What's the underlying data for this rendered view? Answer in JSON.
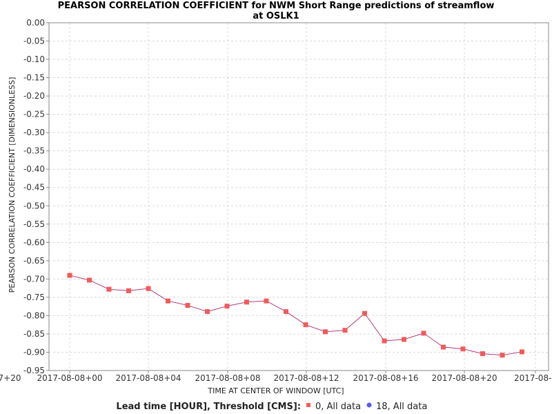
{
  "chart_data": {
    "type": "line",
    "title_line1": "PEARSON CORRELATION COEFFICIENT for NWM Short Range predictions of streamflow",
    "title_line2": "at OSLK1",
    "xlabel": "TIME AT CENTER OF WINDOW [UTC]",
    "ylabel": "PEARSON CORRELATION COEFFICIENT [DIMENSIONLESS]",
    "ylim": [
      -0.95,
      0.0
    ],
    "y_ticks": [
      "0.00",
      "-0.05",
      "-0.10",
      "-0.15",
      "-0.20",
      "-0.25",
      "-0.30",
      "-0.35",
      "-0.40",
      "-0.45",
      "-0.50",
      "-0.55",
      "-0.60",
      "-0.65",
      "-0.70",
      "-0.75",
      "-0.80",
      "-0.85",
      "-0.90",
      "-0.95"
    ],
    "x_tick_labels": [
      "7+20",
      "2017-08-08+00",
      "2017-08-08+04",
      "2017-08-08+08",
      "2017-08-08+12",
      "2017-08-08+16",
      "2017-08-08+20",
      "2017-08-0"
    ],
    "grid": true,
    "legend_position": "bottom",
    "legend_title": "Lead time [HOUR], Threshold [CMS]:",
    "series": [
      {
        "name": "0, All data",
        "color": "#f25a5a",
        "line_color": "#b03a78",
        "marker": "square",
        "x": [
          "2017-08-08+00",
          "2017-08-08+01",
          "2017-08-08+02",
          "2017-08-08+03",
          "2017-08-08+04",
          "2017-08-08+05",
          "2017-08-08+06",
          "2017-08-08+07",
          "2017-08-08+08",
          "2017-08-08+09",
          "2017-08-08+10",
          "2017-08-08+11",
          "2017-08-08+12",
          "2017-08-08+13",
          "2017-08-08+14",
          "2017-08-08+15",
          "2017-08-08+16",
          "2017-08-08+17",
          "2017-08-08+18",
          "2017-08-08+19",
          "2017-08-08+20",
          "2017-08-08+21",
          "2017-08-08+22",
          "2017-08-08+23"
        ],
        "values": [
          -0.69,
          -0.703,
          -0.728,
          -0.732,
          -0.726,
          -0.76,
          -0.772,
          -0.789,
          -0.774,
          -0.763,
          -0.76,
          -0.789,
          -0.825,
          -0.844,
          -0.84,
          -0.794,
          -0.869,
          -0.865,
          -0.848,
          -0.886,
          -0.891,
          -0.904,
          -0.908,
          -0.899
        ]
      },
      {
        "name": "18, All data",
        "color": "#5a5af2",
        "marker": "circle",
        "x": [],
        "values": []
      }
    ]
  }
}
